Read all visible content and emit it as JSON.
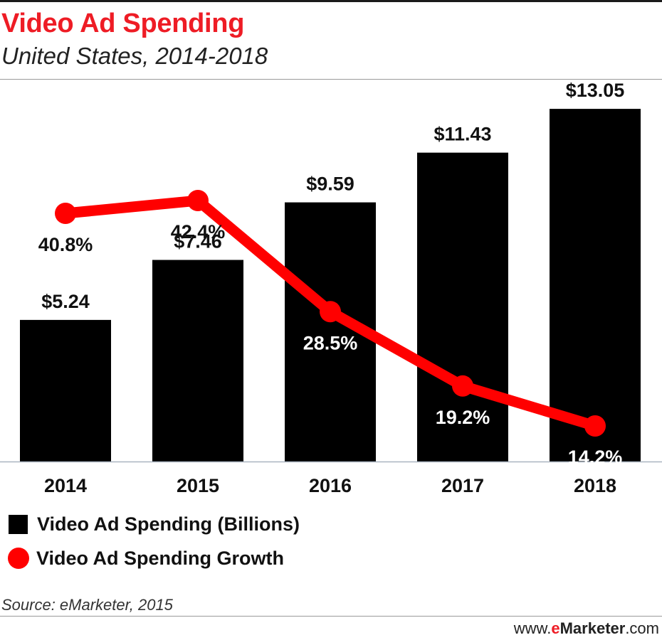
{
  "header": {
    "title": "Video Ad Spending",
    "subtitle": "United States, 2014-2018"
  },
  "chart_data": {
    "type": "bar",
    "categories": [
      "2014",
      "2015",
      "2016",
      "2017",
      "2018"
    ],
    "series": [
      {
        "name": "Video Ad Spending (Billions)",
        "type": "bar",
        "values": [
          5.24,
          7.46,
          9.59,
          11.43,
          13.05
        ],
        "labels": [
          "$5.24",
          "$7.46",
          "$9.59",
          "$11.43",
          "$13.05"
        ],
        "color": "#000000"
      },
      {
        "name": "Video Ad Spending Growth",
        "type": "line",
        "values": [
          40.8,
          42.4,
          28.5,
          19.2,
          14.2
        ],
        "labels": [
          "40.8%",
          "42.4%",
          "28.5%",
          "19.2%",
          "14.2%"
        ],
        "color": "#ff0000"
      }
    ],
    "grid": false,
    "legend": "bottom-left"
  },
  "legend": {
    "items": [
      "Video Ad Spending (Billions)",
      "Video Ad Spending Growth"
    ]
  },
  "footer": {
    "source": "Source: eMarketer, 2015",
    "brand_prefix": "www.",
    "brand_accent": "e",
    "brand_name": "Marketer",
    "brand_suffix": ".com"
  }
}
